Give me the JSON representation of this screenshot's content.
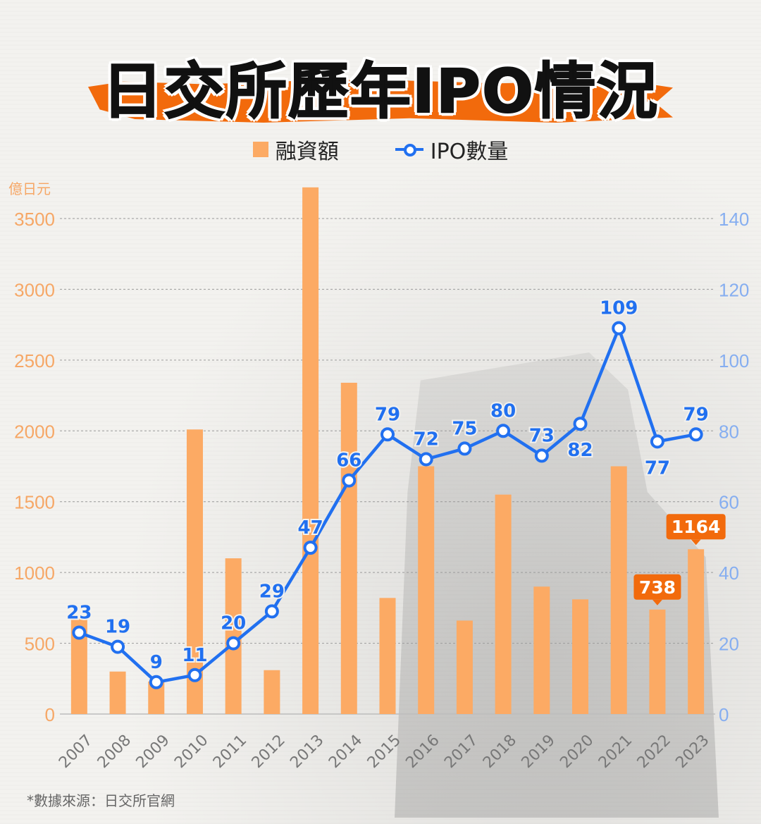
{
  "title": "日交所歷年IPO情況",
  "legend": {
    "bar_label": "融資額",
    "line_label": "IPO數量"
  },
  "source": "*數據來源：日交所官網",
  "colors": {
    "bar": "#fcaa64",
    "line": "#2170f0",
    "highlight": "#f26a0c",
    "left_axis": "#f6a766",
    "right_axis": "#86aef0"
  },
  "chart_data": {
    "type": "bar",
    "categories": [
      "2007",
      "2008",
      "2009",
      "2010",
      "2011",
      "2012",
      "2013",
      "2014",
      "2015",
      "2016",
      "2017",
      "2018",
      "2019",
      "2020",
      "2021",
      "2022",
      "2023"
    ],
    "left_unit": "億日元",
    "left_ticks": [
      0,
      500,
      1000,
      1500,
      2000,
      2500,
      3000,
      3500
    ],
    "right_ticks": [
      0,
      20,
      40,
      60,
      80,
      100,
      120,
      140
    ],
    "ylim": [
      0,
      3500
    ],
    "y2lim": [
      0,
      140
    ],
    "grid": true,
    "series": [
      {
        "name": "融資額",
        "type": "bar",
        "axis": "left",
        "values": [
          680,
          300,
          230,
          2010,
          1100,
          310,
          3720,
          2340,
          820,
          1750,
          660,
          1550,
          900,
          810,
          1750,
          738,
          1164
        ],
        "labeled": [
          false,
          false,
          false,
          false,
          false,
          false,
          false,
          false,
          false,
          false,
          false,
          false,
          false,
          false,
          false,
          true,
          true
        ]
      },
      {
        "name": "IPO數量",
        "type": "line",
        "axis": "right",
        "values": [
          23,
          19,
          9,
          11,
          20,
          29,
          47,
          66,
          79,
          72,
          75,
          80,
          73,
          82,
          109,
          77,
          79
        ]
      }
    ]
  }
}
